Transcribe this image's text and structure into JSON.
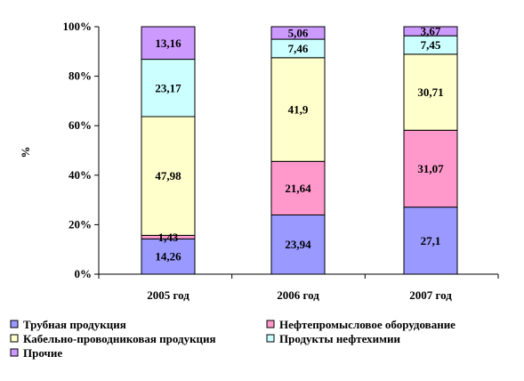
{
  "chart_data": {
    "type": "bar",
    "stacked": true,
    "percent_stacked": true,
    "title": "",
    "xlabel": "",
    "ylabel": "%",
    "ylim": [
      0,
      100
    ],
    "y_ticks": [
      "0%",
      "20%",
      "40%",
      "60%",
      "80%",
      "100%"
    ],
    "categories": [
      "2005 год",
      "2006 год",
      "2007 год"
    ],
    "legend_position": "bottom",
    "grid": false,
    "series": [
      {
        "name": "Трубная продукция",
        "color": "#9999ff",
        "values": [
          14.26,
          23.94,
          27.1
        ],
        "labels": [
          "14,26",
          "23,94",
          "27,1"
        ]
      },
      {
        "name": "Нефтепромысловое оборудование",
        "color": "#ff99cc",
        "values": [
          1.43,
          21.64,
          31.07
        ],
        "labels": [
          "1,43",
          "21,64",
          "31,07"
        ]
      },
      {
        "name": "Кабельно-проводниковая продукция",
        "color": "#ffffcc",
        "values": [
          47.98,
          41.9,
          30.71
        ],
        "labels": [
          "47,98",
          "41,9",
          "30,71"
        ]
      },
      {
        "name": "Продукты нефтехимии",
        "color": "#ccffff",
        "values": [
          23.17,
          7.46,
          7.45
        ],
        "labels": [
          "23,17",
          "7,46",
          "7,45"
        ]
      },
      {
        "name": "Прочие",
        "color": "#cc99ff",
        "values": [
          13.16,
          5.06,
          3.67
        ],
        "labels": [
          "13,16",
          "5,06",
          "3,67"
        ]
      }
    ]
  }
}
